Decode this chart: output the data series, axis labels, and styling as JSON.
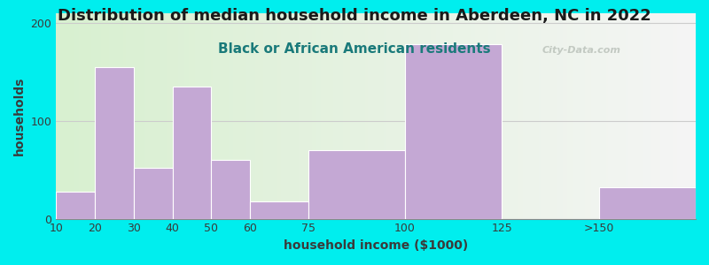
{
  "title": "Distribution of median household income in Aberdeen, NC in 2022",
  "subtitle": "Black or African American residents",
  "xlabel": "household income ($1000)",
  "ylabel": "households",
  "background_outer": "#00EEEE",
  "background_inner_left": "#d8f0d0",
  "background_inner_right": "#f5f5f5",
  "bar_color": "#c4a8d4",
  "bar_edge_color": "#c4a8d4",
  "bar_lefts": [
    10,
    20,
    30,
    40,
    50,
    60,
    75,
    100,
    150
  ],
  "bar_widths": [
    10,
    10,
    10,
    10,
    10,
    15,
    25,
    25,
    25
  ],
  "values": [
    28,
    155,
    52,
    135,
    60,
    18,
    70,
    178,
    32
  ],
  "xtick_vals": [
    10,
    20,
    30,
    40,
    50,
    60,
    75,
    100,
    125,
    150
  ],
  "xtick_labels": [
    "10",
    "20",
    "30",
    "40",
    "50",
    "60",
    "75",
    "100",
    "125",
    ">150"
  ],
  "ylim": [
    0,
    210
  ],
  "yticks": [
    0,
    100,
    200
  ],
  "xlim": [
    10,
    175
  ],
  "title_fontsize": 13,
  "subtitle_fontsize": 11,
  "axis_label_fontsize": 10,
  "tick_fontsize": 9,
  "title_color": "#1a1a1a",
  "subtitle_color": "#1a7a7a",
  "axis_label_color": "#3a3a3a",
  "watermark_text": "City-Data.com",
  "watermark_color": "#b0b8b0",
  "grid_color": "#cccccc"
}
